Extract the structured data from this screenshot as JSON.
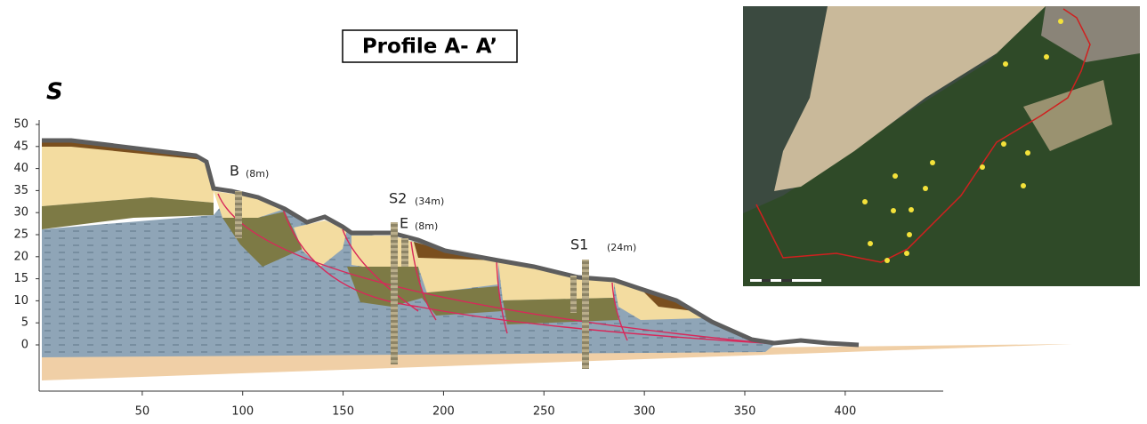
{
  "header": {
    "title": "Profile A- A’",
    "side": "S"
  },
  "axes": {
    "yticks": [
      0,
      5,
      10,
      15,
      20,
      25,
      30,
      35,
      40,
      45,
      50
    ],
    "xticks": [
      50,
      100,
      150,
      200,
      250,
      300,
      350,
      400
    ]
  },
  "boreholes": [
    {
      "name": "B",
      "depth": "(8m)"
    },
    {
      "name": "S2",
      "depth": "(34m)"
    },
    {
      "name": "E",
      "depth": "(8m)"
    },
    {
      "name": "S1",
      "depth": "(24m)"
    }
  ]
}
